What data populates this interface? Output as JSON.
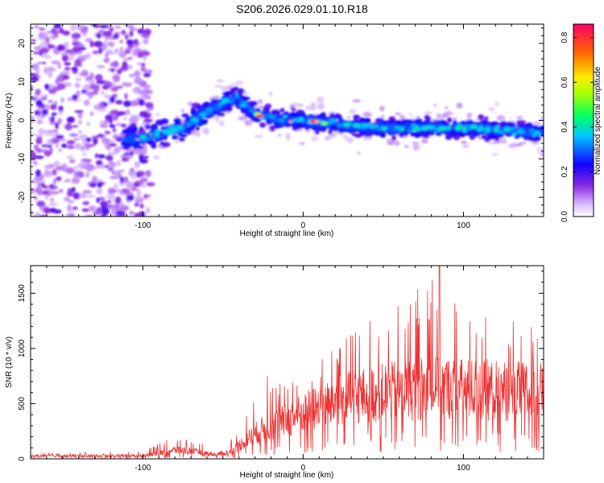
{
  "title": "S206.2026.029.01.10.R18",
  "chart_data": [
    {
      "type": "heatmap",
      "xlabel": "Height of straight line (km)",
      "ylabel": "Frequency (Hz)",
      "xlim": [
        -170,
        150
      ],
      "ylim": [
        -25,
        25
      ],
      "x_ticks": [
        -100,
        0,
        100
      ],
      "y_ticks": [
        -20,
        -10,
        0,
        10,
        20
      ],
      "colorbar": {
        "label": "Normalized spectral amplitude",
        "range": [
          0.0,
          0.86
        ],
        "ticks": [
          0.0,
          0.2,
          0.4,
          0.6,
          0.8
        ],
        "colors": [
          "#ffffff",
          "#cc99ff",
          "#7700ee",
          "#0000ff",
          "#00ccff",
          "#00ff66",
          "#ffff00",
          "#ff6600",
          "#ff0066"
        ]
      },
      "ridge": [
        {
          "x": -110,
          "freq": -5
        },
        {
          "x": -95,
          "freq": -4
        },
        {
          "x": -75,
          "freq": -2
        },
        {
          "x": -60,
          "freq": 2
        },
        {
          "x": -42,
          "freq": 6
        },
        {
          "x": -30,
          "freq": 2
        },
        {
          "x": -15,
          "freq": 0
        },
        {
          "x": 0,
          "freq": 0
        },
        {
          "x": 20,
          "freq": -1
        },
        {
          "x": 50,
          "freq": -2
        },
        {
          "x": 100,
          "freq": -2
        },
        {
          "x": 145,
          "freq": -3
        }
      ],
      "noise_region_xmax": -105
    },
    {
      "type": "line",
      "xlabel": "Height of straight line (km)",
      "ylabel": "SNR (10 * v/v)",
      "xlim": [
        -170,
        150
      ],
      "ylim": [
        0,
        1750
      ],
      "x_ticks": [
        -100,
        0,
        100
      ],
      "y_ticks": [
        0,
        500,
        1000,
        1500
      ],
      "series": [
        {
          "color": "#ee3333",
          "envelope": [
            {
              "x": -170,
              "mean": 25,
              "peak": 50
            },
            {
              "x": -100,
              "mean": 30,
              "peak": 70
            },
            {
              "x": -90,
              "mean": 50,
              "peak": 140
            },
            {
              "x": -80,
              "mean": 80,
              "peak": 200
            },
            {
              "x": -70,
              "mean": 70,
              "peak": 180
            },
            {
              "x": -55,
              "mean": 40,
              "peak": 120
            },
            {
              "x": -45,
              "mean": 60,
              "peak": 180
            },
            {
              "x": -35,
              "mean": 180,
              "peak": 420
            },
            {
              "x": -25,
              "mean": 270,
              "peak": 800
            },
            {
              "x": -10,
              "mean": 350,
              "peak": 700
            },
            {
              "x": 0,
              "mean": 420,
              "peak": 780
            },
            {
              "x": 20,
              "mean": 520,
              "peak": 1000
            },
            {
              "x": 40,
              "mean": 580,
              "peak": 1300
            },
            {
              "x": 60,
              "mean": 620,
              "peak": 1400
            },
            {
              "x": 85,
              "mean": 650,
              "peak": 1750
            },
            {
              "x": 100,
              "mean": 630,
              "peak": 1350
            },
            {
              "x": 120,
              "mean": 620,
              "peak": 1300
            },
            {
              "x": 150,
              "mean": 600,
              "peak": 1200
            }
          ]
        }
      ]
    }
  ]
}
